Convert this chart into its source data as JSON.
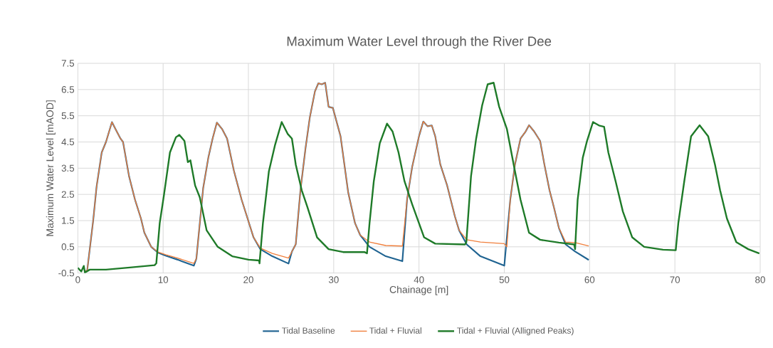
{
  "chart_data": {
    "type": "line",
    "title": "Maximum Water Level through the River Dee",
    "xlabel": "Chainage [m]",
    "ylabel": "Maximum Water Level [mAOD]",
    "xlim": [
      0,
      80
    ],
    "ylim": [
      -0.5,
      7.5
    ],
    "xticks": [
      0,
      10,
      20,
      30,
      40,
      50,
      60,
      70,
      80
    ],
    "yticks": [
      -0.5,
      0.5,
      1.5,
      2.5,
      3.5,
      4.5,
      5.5,
      6.5,
      7.5
    ],
    "grid": true,
    "legend": "bottom",
    "marker": "none",
    "line_style": "solid",
    "series": [
      {
        "name": "Tidal Baseline",
        "color": "#1f6391",
        "x": [
          0.83,
          1.1,
          1.8,
          2.2,
          2.8,
          3.3,
          4.0,
          4.4,
          5.0,
          5.3,
          6.0,
          6.7,
          7.4,
          7.8,
          8.6,
          9.4,
          10.3,
          11.7,
          13.6,
          13.9,
          14.3,
          14.7,
          15.3,
          15.8,
          16.3,
          16.9,
          17.5,
          18.3,
          19.2,
          19.9,
          20.6,
          21.4,
          22.8,
          24.7,
          25.1,
          25.55,
          26.1,
          26.7,
          27.2,
          27.8,
          28.2,
          28.6,
          29.0,
          29.4,
          29.9,
          30.8,
          31.7,
          32.5,
          33.1,
          34.2,
          36.1,
          38.05,
          38.6,
          39.2,
          40.0,
          40.5,
          41.0,
          41.5,
          41.9,
          42.5,
          43.3,
          44.2,
          44.7,
          45.6,
          47.2,
          50.0,
          50.7,
          51.25,
          51.9,
          52.5,
          52.9,
          53.5,
          54.2,
          54.7,
          55.3,
          55.8,
          56.4,
          57.2,
          58.3,
          59.9
        ],
        "values": [
          -0.44,
          -0.4,
          1.5,
          2.8,
          4.1,
          4.5,
          5.26,
          5.0,
          4.63,
          4.5,
          3.2,
          2.3,
          1.58,
          1.04,
          0.5,
          0.28,
          0.16,
          0.01,
          -0.22,
          0.05,
          1.4,
          2.75,
          3.9,
          4.63,
          5.24,
          5.0,
          4.63,
          3.4,
          2.3,
          1.58,
          0.86,
          0.41,
          0.14,
          -0.14,
          0.32,
          0.6,
          2.66,
          4.27,
          5.44,
          6.43,
          6.74,
          6.7,
          6.76,
          5.84,
          5.8,
          4.72,
          2.57,
          1.4,
          0.95,
          0.5,
          0.14,
          -0.05,
          2.3,
          3.55,
          4.72,
          5.28,
          5.1,
          5.13,
          4.72,
          3.64,
          2.84,
          1.67,
          1.13,
          0.59,
          0.14,
          -0.22,
          2.3,
          3.64,
          4.63,
          4.9,
          5.14,
          4.9,
          4.54,
          3.64,
          2.66,
          2.03,
          1.22,
          0.59,
          0.32,
          0.0
        ]
      },
      {
        "name": "Tidal + Fluvial",
        "color": "#f07f3c",
        "x": [
          0.83,
          1.1,
          1.8,
          2.2,
          2.8,
          3.3,
          4.0,
          4.4,
          5.0,
          5.3,
          6.0,
          6.7,
          7.4,
          7.8,
          8.6,
          9.4,
          10.3,
          11.7,
          13.6,
          13.9,
          14.3,
          14.7,
          15.3,
          15.8,
          16.3,
          16.9,
          17.5,
          18.3,
          19.2,
          19.9,
          20.6,
          21.4,
          22.8,
          24.7,
          25.1,
          25.55,
          26.1,
          26.7,
          27.2,
          27.8,
          28.2,
          28.6,
          29.0,
          29.4,
          29.9,
          30.8,
          31.7,
          32.5,
          33.1,
          34.2,
          36.1,
          38.05,
          38.6,
          39.2,
          40.0,
          40.5,
          41.0,
          41.5,
          41.9,
          42.5,
          43.3,
          44.2,
          44.7,
          45.6,
          47.2,
          50.0,
          50.3,
          50.7,
          51.25,
          51.9,
          52.5,
          52.9,
          53.5,
          54.2,
          54.7,
          55.3,
          55.8,
          56.4,
          57.2,
          58.3,
          59.9
        ],
        "values": [
          -0.44,
          -0.4,
          1.5,
          2.8,
          4.1,
          4.5,
          5.26,
          5.0,
          4.63,
          4.5,
          3.2,
          2.3,
          1.58,
          1.04,
          0.5,
          0.3,
          0.2,
          0.07,
          -0.13,
          0.05,
          1.4,
          2.75,
          3.9,
          4.63,
          5.24,
          5.0,
          4.63,
          3.4,
          2.3,
          1.58,
          0.86,
          0.45,
          0.25,
          0.07,
          0.32,
          0.6,
          2.66,
          4.27,
          5.44,
          6.43,
          6.74,
          6.7,
          6.76,
          5.84,
          5.8,
          4.72,
          2.57,
          1.4,
          0.95,
          0.68,
          0.55,
          0.53,
          2.3,
          3.55,
          4.72,
          5.28,
          5.1,
          5.13,
          4.72,
          3.64,
          2.84,
          1.67,
          1.13,
          0.77,
          0.68,
          0.62,
          0.5,
          2.3,
          3.64,
          4.63,
          4.9,
          5.14,
          4.9,
          4.54,
          3.64,
          2.66,
          2.03,
          1.22,
          0.68,
          0.66,
          0.53
        ]
      },
      {
        "name": "Tidal + Fluvial (Alligned Peaks)",
        "color": "#1e7a28",
        "x": [
          0.0,
          0.4,
          0.7,
          0.83,
          1.4,
          3.3,
          6.1,
          9.0,
          9.2,
          9.6,
          10.1,
          10.8,
          11.5,
          11.9,
          12.5,
          12.9,
          13.2,
          13.75,
          14.3,
          15.1,
          16.4,
          18.1,
          20.0,
          21.25,
          21.3,
          21.7,
          22.4,
          23.1,
          23.9,
          24.6,
          25.1,
          25.55,
          26.25,
          26.9,
          28.05,
          29.4,
          31.1,
          33.6,
          33.9,
          34.2,
          34.7,
          35.4,
          36.25,
          36.9,
          37.6,
          38.3,
          39.2,
          40.6,
          41.9,
          45.4,
          45.55,
          46.1,
          46.7,
          47.4,
          48.05,
          48.75,
          49.4,
          50.3,
          51.1,
          51.9,
          52.9,
          54.2,
          56.4,
          58.2,
          58.3,
          58.6,
          59.2,
          59.7,
          60.4,
          61.1,
          61.7,
          62.2,
          63.05,
          63.9,
          65.0,
          66.4,
          68.6,
          70.1,
          70.4,
          71.1,
          71.9,
          72.9,
          73.9,
          74.7,
          75.3,
          76.1,
          77.2,
          78.6,
          79.9
        ],
        "values": [
          -0.3,
          -0.44,
          -0.23,
          -0.48,
          -0.37,
          -0.37,
          -0.29,
          -0.2,
          -0.13,
          1.4,
          2.48,
          4.1,
          4.68,
          4.77,
          4.54,
          3.73,
          3.8,
          2.84,
          2.39,
          1.13,
          0.5,
          0.14,
          0.01,
          -0.02,
          -0.13,
          1.4,
          3.38,
          4.36,
          5.26,
          4.81,
          4.63,
          3.64,
          2.66,
          2.03,
          0.86,
          0.41,
          0.3,
          0.3,
          0.25,
          1.4,
          3.0,
          4.45,
          5.2,
          4.9,
          4.1,
          3.0,
          2.12,
          0.86,
          0.62,
          0.59,
          0.68,
          3.2,
          4.63,
          5.89,
          6.7,
          6.76,
          5.84,
          5.0,
          3.64,
          2.3,
          1.04,
          0.77,
          0.66,
          0.59,
          0.41,
          2.3,
          3.9,
          4.54,
          5.26,
          5.13,
          5.08,
          4.1,
          3.0,
          1.85,
          0.86,
          0.5,
          0.39,
          0.37,
          1.4,
          3.0,
          4.72,
          5.14,
          4.72,
          3.64,
          2.66,
          1.58,
          0.68,
          0.41,
          0.25
        ]
      }
    ]
  }
}
